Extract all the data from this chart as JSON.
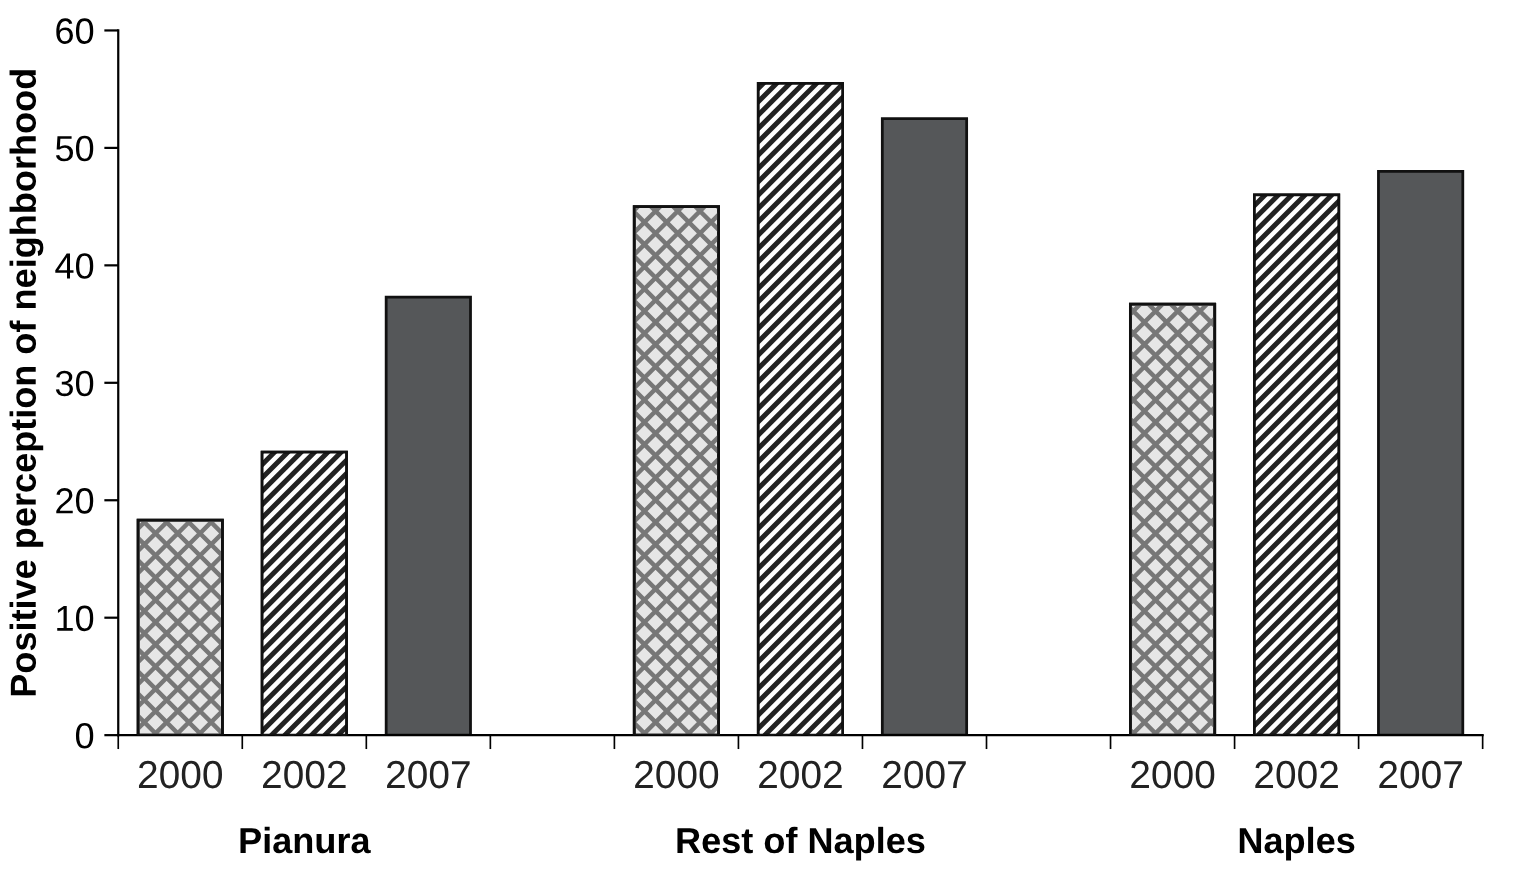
{
  "chart_data": {
    "type": "bar",
    "ylabel": "Positive perception of neighborhood",
    "categories": [
      "Pianura",
      "Rest of Naples",
      "Naples"
    ],
    "series": [
      {
        "name": "2000",
        "color": "#e6e6e6",
        "values": [
          18.3,
          45.0,
          36.7
        ]
      },
      {
        "name": "2002",
        "color": "#222222",
        "values": [
          24.1,
          55.5,
          46.0
        ]
      },
      {
        "name": "2007",
        "color": "#555759",
        "values": [
          37.3,
          52.5,
          48.0
        ]
      }
    ],
    "ylim": [
      0,
      60
    ],
    "yticks": [
      0,
      10,
      20,
      30,
      40,
      50,
      60
    ],
    "grid": false,
    "legend": false
  }
}
